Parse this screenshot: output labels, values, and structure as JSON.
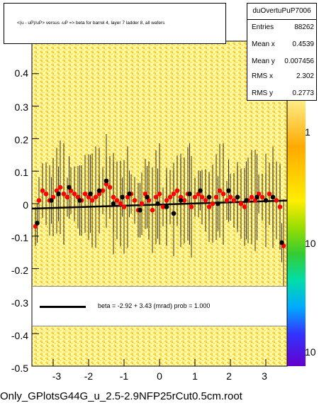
{
  "title": "<(u - uP)/uP> versus -uP => beta for barrel 4, layer 7 ladder 8, all wafers",
  "stats": {
    "name": "duOvertuPuP7006",
    "rows": [
      {
        "key": "Entries",
        "value": "88262"
      },
      {
        "key": "Mean x",
        "value": "0.4539"
      },
      {
        "key": "Mean y",
        "value": "0.007456"
      },
      {
        "key": "RMS x",
        "value": "2.302"
      },
      {
        "key": "RMS y",
        "value": "0.2773"
      }
    ]
  },
  "fit": {
    "text": "beta =    -2.92 +   3.43 (mrad) prob = 1.000"
  },
  "xlabel": "Only_GPlotsG44G_u_2.5-2.9NFP25rCut0.5cm.root",
  "colors": {
    "red_markers": "#ff0000",
    "black_markers": "#000000",
    "fit_line": "#000000",
    "palette_low": "#ffffcc",
    "palette_mid": "#ffd000",
    "palette_high": "#6600cc"
  },
  "chart_data": {
    "type": "scatter",
    "xlim": [
      -3.6,
      3.6
    ],
    "ylim": [
      -0.5,
      0.5
    ],
    "x_ticks": [
      "-3",
      "-2",
      "-1",
      "0",
      "1",
      "2",
      "3"
    ],
    "x_tick_values": [
      -3,
      -2,
      -1,
      0,
      1,
      2,
      3
    ],
    "y_ticks": [
      "0.4",
      "0.3",
      "0.2",
      "0.1",
      "0",
      "-0.1",
      "-0.2",
      "-0.3",
      "-0.4",
      "-0.5"
    ],
    "y_tick_values": [
      0.4,
      0.3,
      0.2,
      0.1,
      0,
      -0.1,
      -0.2,
      -0.3,
      -0.4,
      -0.5
    ],
    "z_ticks": [
      "1",
      "10",
      "10"
    ],
    "z_scale": "log",
    "fit_line": {
      "slope": 0.00343,
      "intercept": -0.00292
    },
    "series": [
      {
        "marker": "red",
        "x": [
          -3.5,
          -3.4,
          -3.3,
          -3.2,
          -3.1,
          -3.0,
          -2.9,
          -2.8,
          -2.7,
          -2.6,
          -2.5,
          -2.4,
          -2.3,
          -2.2,
          -2.1,
          -2.0,
          -1.9,
          -1.8,
          -1.7,
          -1.6,
          -1.5,
          -1.4,
          -1.3,
          -1.2,
          -1.1,
          -1.0,
          -0.9,
          -0.8,
          -0.7,
          -0.6,
          -0.5,
          -0.4,
          -0.3,
          -0.2,
          -0.1,
          0.0,
          0.1,
          0.2,
          0.3,
          0.4,
          0.5,
          0.6,
          0.7,
          0.8,
          0.9,
          1.0,
          1.1,
          1.2,
          1.3,
          1.4,
          1.5,
          1.6,
          1.7,
          1.8,
          1.9,
          2.0,
          2.1,
          2.2,
          2.3,
          2.4,
          2.5,
          2.6,
          2.7,
          2.8,
          2.9,
          3.0,
          3.1,
          3.2,
          3.3,
          3.4,
          3.5
        ],
        "y": [
          -0.07,
          0.01,
          0.04,
          0.03,
          0.01,
          0.02,
          0.04,
          0.05,
          0.03,
          0.02,
          0.04,
          0.03,
          0.02,
          0.01,
          0.03,
          0.02,
          0.01,
          0.02,
          0.03,
          0.04,
          0.06,
          0.05,
          0.02,
          0.01,
          0.0,
          -0.01,
          0.02,
          0.03,
          0.01,
          -0.02,
          0.0,
          0.03,
          0.01,
          -0.02,
          0.02,
          0.03,
          -0.01,
          0.01,
          0.02,
          0.03,
          0.04,
          0.02,
          0.01,
          0.03,
          -0.01,
          0.02,
          0.03,
          0.02,
          0.01,
          -0.01,
          0.0,
          0.02,
          0.04,
          0.03,
          0.01,
          0.02,
          0.01,
          0.02,
          0.0,
          -0.01,
          0.01,
          0.02,
          0.01,
          0.03,
          0.02,
          0.01,
          0.03,
          0.02,
          0.01,
          -0.01,
          -0.13
        ]
      },
      {
        "marker": "black",
        "x": [
          -3.45,
          -3.05,
          -2.85,
          -2.55,
          -2.25,
          -1.95,
          -1.7,
          -1.5,
          -1.3,
          -1.05,
          -0.85,
          -0.55,
          -0.35,
          -0.05,
          0.2,
          0.4,
          0.6,
          0.85,
          1.15,
          1.4,
          1.65,
          1.95,
          2.2,
          2.45,
          2.75,
          3.0,
          3.2,
          3.45
        ],
        "y": [
          -0.06,
          0.01,
          0.03,
          0.05,
          0.01,
          0.03,
          0.04,
          0.07,
          0.0,
          0.02,
          0.03,
          -0.02,
          0.02,
          0.0,
          -0.01,
          -0.03,
          0.01,
          0.03,
          0.04,
          0.02,
          0.0,
          0.04,
          0.02,
          0.01,
          0.02,
          0.01,
          0.02,
          -0.12
        ]
      }
    ]
  }
}
